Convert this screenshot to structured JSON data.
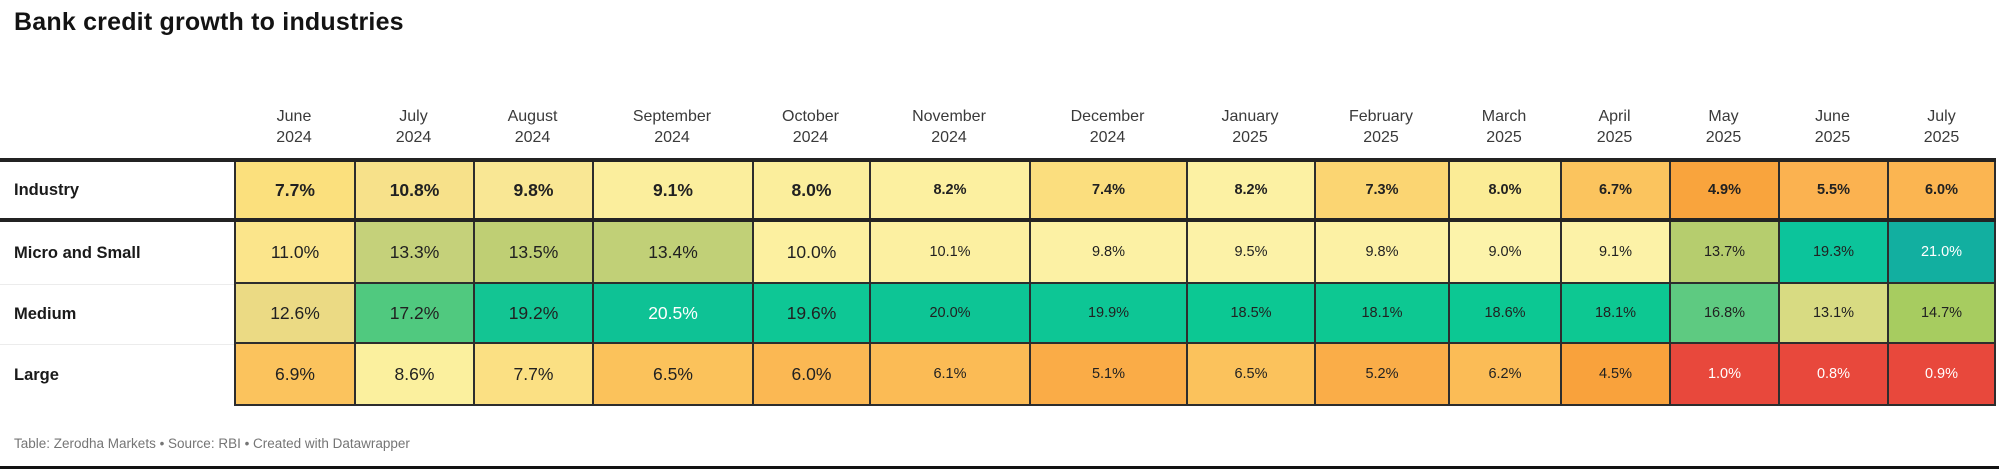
{
  "title": "Bank credit growth to industries",
  "footer": "Table: Zerodha Markets • Source: RBI • Created with Datawrapper",
  "chart_data": {
    "type": "heatmap",
    "title": "Bank credit growth to industries",
    "value_unit": "%",
    "legend_position": "none",
    "grid": "dark cell borders",
    "columns": [
      {
        "month": "June",
        "year": "2024"
      },
      {
        "month": "July",
        "year": "2024"
      },
      {
        "month": "August",
        "year": "2024"
      },
      {
        "month": "September",
        "year": "2024"
      },
      {
        "month": "October",
        "year": "2024"
      },
      {
        "month": "November",
        "year": "2024"
      },
      {
        "month": "December",
        "year": "2024"
      },
      {
        "month": "January",
        "year": "2025"
      },
      {
        "month": "February",
        "year": "2025"
      },
      {
        "month": "March",
        "year": "2025"
      },
      {
        "month": "April",
        "year": "2025"
      },
      {
        "month": "May",
        "year": "2025"
      },
      {
        "month": "June",
        "year": "2025"
      },
      {
        "month": "July",
        "year": "2025"
      }
    ],
    "rows": [
      {
        "label": "Industry",
        "values": [
          7.7,
          10.8,
          9.8,
          9.1,
          8.0,
          8.2,
          7.4,
          8.2,
          7.3,
          8.0,
          6.7,
          4.9,
          5.5,
          6.0
        ],
        "colors": [
          "#FBE07D",
          "#F7E18A",
          "#F9E794",
          "#FBEE9D",
          "#FBEE9C",
          "#FCF0A0",
          "#FBDE7E",
          "#FCF1A3",
          "#FBD572",
          "#FBEC96",
          "#FBC45E",
          "#F9A43D",
          "#FBB250",
          "#FBB551"
        ],
        "light_text": []
      },
      {
        "label": "Micro and Small",
        "values": [
          11.0,
          13.3,
          13.5,
          13.4,
          10.0,
          10.1,
          9.8,
          9.5,
          9.8,
          9.0,
          9.1,
          13.7,
          19.3,
          21.0
        ],
        "colors": [
          "#FBE58B",
          "#C5D17A",
          "#BFCF74",
          "#C1D077",
          "#FCF0A0",
          "#FCF0A1",
          "#FCF1A4",
          "#FCF2A7",
          "#FCF1A4",
          "#FCF3AA",
          "#FCF2A7",
          "#B6CD6E",
          "#0CC49B",
          "#12AFA0"
        ],
        "light_text": [
          13
        ]
      },
      {
        "label": "Medium",
        "values": [
          12.6,
          17.2,
          19.2,
          20.5,
          19.6,
          20.0,
          19.9,
          18.5,
          18.1,
          18.6,
          18.1,
          16.8,
          13.1,
          14.7
        ],
        "colors": [
          "#EBDA84",
          "#50C97F",
          "#13C593",
          "#0EC295",
          "#0EC795",
          "#0DC595",
          "#0DC695",
          "#0CC893",
          "#0DC892",
          "#0CC893",
          "#0DC892",
          "#5ECA81",
          "#D8DB82",
          "#A7CC60"
        ],
        "light_text": [
          3
        ]
      },
      {
        "label": "Large",
        "values": [
          6.9,
          8.6,
          7.7,
          6.5,
          6.0,
          6.1,
          5.1,
          6.5,
          5.2,
          6.2,
          4.5,
          1.0,
          0.8,
          0.9
        ],
        "colors": [
          "#FBC35D",
          "#FBF09E",
          "#FBE083",
          "#FBC25B",
          "#FBB853",
          "#FBBB55",
          "#FAAC47",
          "#FBC25C",
          "#FAAD48",
          "#FBBC56",
          "#F9A23C",
          "#E8483C",
          "#E8483C",
          "#E8483C"
        ],
        "light_text": [
          11,
          12,
          13
        ]
      }
    ]
  }
}
